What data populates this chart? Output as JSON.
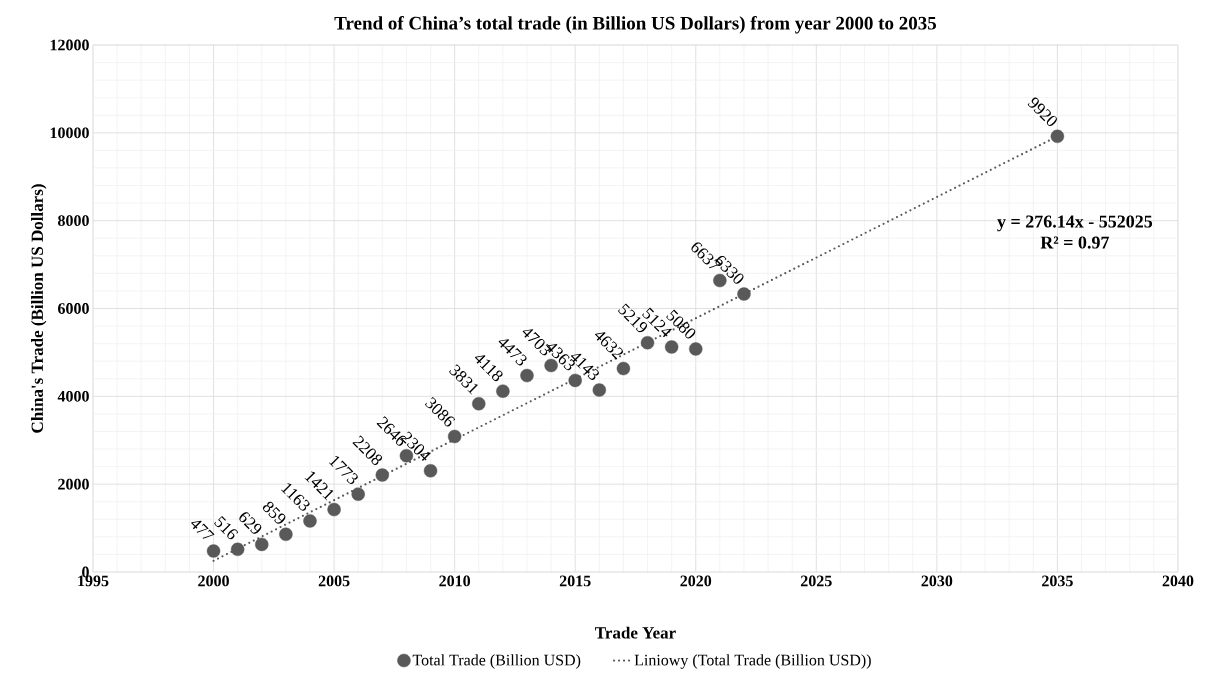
{
  "chart_data": {
    "type": "scatter",
    "title": "Trend of China’s total trade (in Billion US Dollars) from year 2000 to 2035",
    "xlabel": "Trade Year",
    "ylabel": "China's Trade (Billion US Dollars)",
    "xlim": [
      1995,
      2040
    ],
    "xticks": [
      1995,
      2000,
      2005,
      2010,
      2015,
      2020,
      2025,
      2030,
      2035,
      2040
    ],
    "ylim": [
      0,
      12000
    ],
    "yticks": [
      0,
      2000,
      4000,
      6000,
      8000,
      10000,
      12000
    ],
    "grid": true,
    "legend": "bottom",
    "marker": "circle",
    "series": [
      {
        "name": "Total Trade (Billion USD)",
        "color": "#595959",
        "x": [
          2000,
          2001,
          2002,
          2003,
          2004,
          2005,
          2006,
          2007,
          2008,
          2009,
          2010,
          2011,
          2012,
          2013,
          2014,
          2015,
          2016,
          2017,
          2018,
          2019,
          2020,
          2021,
          2022,
          2035
        ],
        "values": [
          477,
          516,
          629,
          859,
          1163,
          1421,
          1773,
          2208,
          2646,
          2304,
          3086,
          3831,
          4118,
          4473,
          4703,
          4363,
          4143,
          4632,
          5219,
          5124,
          5080,
          6637,
          6330,
          9920
        ],
        "value_labels": [
          "477",
          "516",
          "629",
          "859",
          "1163",
          "1421",
          "1773",
          "2208",
          "2646",
          "2304",
          "3086",
          "3831",
          "4118",
          "4473",
          "4703",
          "4363",
          "4143",
          "4632",
          "5219",
          "5124",
          "5080",
          "6637",
          "6330",
          "9920"
        ]
      },
      {
        "name": "Liniowy (Total Trade (Billion USD))",
        "type": "line",
        "line_style": "dotted",
        "marker": "none",
        "color": "#595959",
        "x": [
          2000,
          2035
        ],
        "values": [
          255,
          9920
        ]
      }
    ],
    "annotations": [
      "y = 276.14x - 552025",
      "R² = 0.97"
    ]
  }
}
